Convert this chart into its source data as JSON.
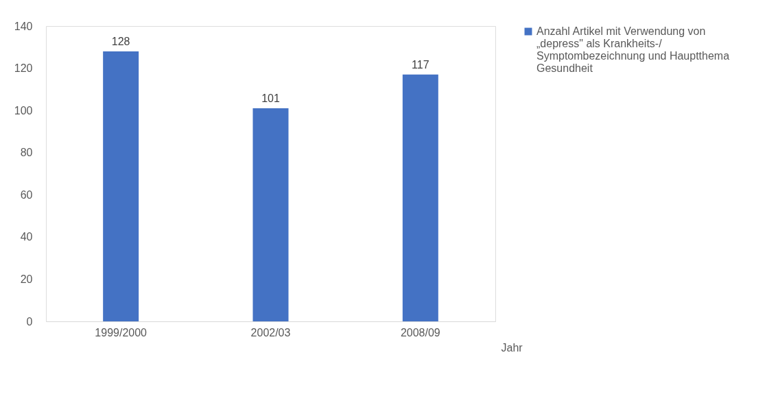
{
  "chart_data": {
    "type": "bar",
    "xlabel": "Jahr",
    "categories": [
      "1999/2000",
      "2002/03",
      "2008/09"
    ],
    "series": [
      {
        "name": "Anzahl Artikel mit Verwendung von „depress\" als Krankheits-/ Symptombezeichnung  und Hauptthema Gesundheit",
        "color": "#4472c4",
        "values": [
          128,
          101,
          117
        ]
      }
    ],
    "ylim": [
      0,
      140
    ],
    "yticks": [
      0,
      20,
      40,
      60,
      80,
      100,
      120,
      140
    ],
    "grid": false,
    "legend": "right",
    "data_labels": true
  }
}
